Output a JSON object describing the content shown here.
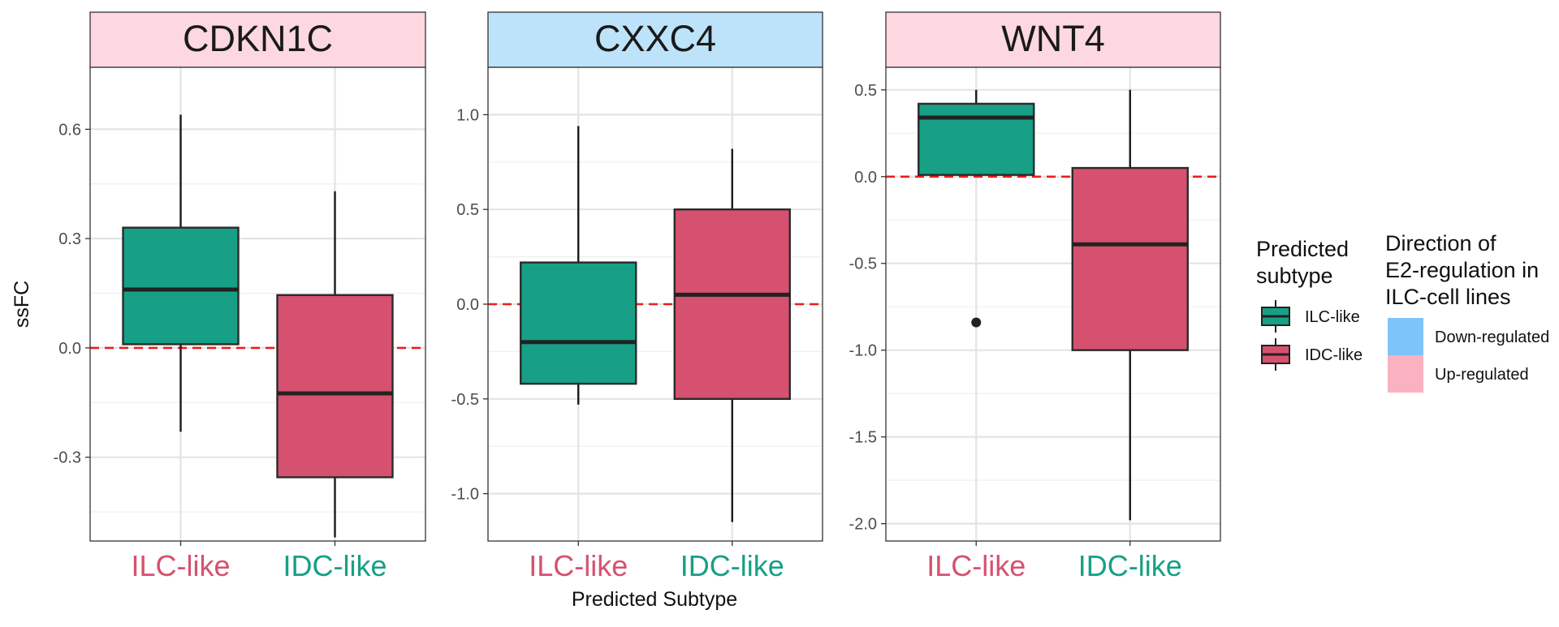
{
  "chart_data": {
    "type": "box",
    "ylabel": "ssFC",
    "xlabel": "Predicted Subtype",
    "reference_line": {
      "y": 0,
      "style": "dashed",
      "color": "#ee1c1c"
    },
    "categories": [
      "ILC-like",
      "IDC-like"
    ],
    "category_label_colors": [
      "#d6516f",
      "#17a086"
    ],
    "fill_colors": {
      "ILC-like": "#17a086",
      "IDC-like": "#d6516f"
    },
    "panels": [
      {
        "title": "CDKN1C",
        "strip_color": "#fdd8e0",
        "ylim": [
          -0.53,
          0.77
        ],
        "yticks": [
          {
            "value": -0.3,
            "label": "-0.3"
          },
          {
            "value": 0.0,
            "label": "0.0"
          },
          {
            "value": 0.3,
            "label": "0.3"
          },
          {
            "value": 0.6,
            "label": "0.6"
          }
        ],
        "minor_ticks": [
          -0.45,
          -0.15,
          0.15,
          0.45
        ],
        "boxes": [
          {
            "category": "ILC-like",
            "whisker_low": -0.23,
            "q1": 0.01,
            "median": 0.16,
            "q3": 0.33,
            "whisker_high": 0.64,
            "outliers": []
          },
          {
            "category": "IDC-like",
            "whisker_low": -0.52,
            "q1": -0.355,
            "median": -0.125,
            "q3": 0.145,
            "whisker_high": 0.43,
            "outliers": []
          }
        ]
      },
      {
        "title": "CXXC4",
        "strip_color": "#bde3fa",
        "ylim": [
          -1.25,
          1.25
        ],
        "yticks": [
          {
            "value": -1.0,
            "label": "-1.0"
          },
          {
            "value": -0.5,
            "label": "-0.5"
          },
          {
            "value": 0.0,
            "label": "0.0"
          },
          {
            "value": 0.5,
            "label": "0.5"
          },
          {
            "value": 1.0,
            "label": "1.0"
          }
        ],
        "minor_ticks": [
          -0.75,
          -0.25,
          0.25,
          0.75
        ],
        "boxes": [
          {
            "category": "ILC-like",
            "whisker_low": -0.53,
            "q1": -0.42,
            "median": -0.2,
            "q3": 0.22,
            "whisker_high": 0.94,
            "outliers": []
          },
          {
            "category": "IDC-like",
            "whisker_low": -1.15,
            "q1": -0.5,
            "median": 0.05,
            "q3": 0.5,
            "whisker_high": 0.82,
            "outliers": []
          }
        ]
      },
      {
        "title": "WNT4",
        "strip_color": "#fdd8e0",
        "ylim": [
          -2.1,
          0.63
        ],
        "yticks": [
          {
            "value": -2.0,
            "label": "-2.0"
          },
          {
            "value": -1.5,
            "label": "-1.5"
          },
          {
            "value": -1.0,
            "label": "-1.0"
          },
          {
            "value": -0.5,
            "label": "-0.5"
          },
          {
            "value": 0.0,
            "label": "0.0"
          },
          {
            "value": 0.5,
            "label": "0.5"
          }
        ],
        "minor_ticks": [
          -1.75,
          -1.25,
          -0.75,
          -0.25,
          0.25
        ],
        "boxes": [
          {
            "category": "ILC-like",
            "whisker_low": 0.01,
            "q1": 0.01,
            "median": 0.34,
            "q3": 0.42,
            "whisker_high": 0.5,
            "outliers": [
              -0.84
            ]
          },
          {
            "category": "IDC-like",
            "whisker_low": -1.98,
            "q1": -1.0,
            "median": -0.39,
            "q3": 0.05,
            "whisker_high": 0.5,
            "outliers": []
          }
        ]
      }
    ],
    "legends": [
      {
        "title_lines": [
          "Predicted",
          "subtype"
        ],
        "entries": [
          {
            "label": "ILC-like",
            "color": "#17a086",
            "kind": "boxplot-key"
          },
          {
            "label": "IDC-like",
            "color": "#d6516f",
            "kind": "boxplot-key"
          }
        ]
      },
      {
        "title_lines": [
          "Direction of",
          "E2-regulation in",
          "ILC-cell lines"
        ],
        "entries": [
          {
            "label": "Down-regulated",
            "color": "#7cc4f9",
            "kind": "fill"
          },
          {
            "label": "Up-regulated",
            "color": "#fbb2c0",
            "kind": "fill"
          }
        ]
      }
    ]
  }
}
